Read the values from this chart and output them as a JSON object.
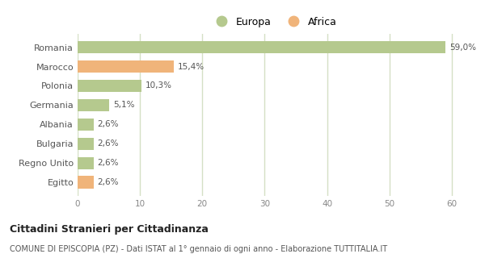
{
  "categories": [
    "Romania",
    "Marocco",
    "Polonia",
    "Germania",
    "Albania",
    "Bulgaria",
    "Regno Unito",
    "Egitto"
  ],
  "values": [
    59.0,
    15.4,
    10.3,
    5.1,
    2.6,
    2.6,
    2.6,
    2.6
  ],
  "labels": [
    "59,0%",
    "15,4%",
    "10,3%",
    "5,1%",
    "2,6%",
    "2,6%",
    "2,6%",
    "2,6%"
  ],
  "colors": [
    "#b5c98e",
    "#f0b47a",
    "#b5c98e",
    "#b5c98e",
    "#b5c98e",
    "#b5c98e",
    "#b5c98e",
    "#f0b47a"
  ],
  "legend_europa_color": "#b5c98e",
  "legend_africa_color": "#f0b47a",
  "xlim": [
    0,
    63
  ],
  "xticks": [
    0,
    10,
    20,
    30,
    40,
    50,
    60
  ],
  "title_bold": "Cittadini Stranieri per Cittadinanza",
  "subtitle": "COMUNE DI EPISCOPIA (PZ) - Dati ISTAT al 1° gennaio di ogni anno - Elaborazione TUTTITALIA.IT",
  "background_color": "#ffffff",
  "grid_color": "#d5e0c5",
  "bar_height": 0.65,
  "label_fontsize": 7.5,
  "ytick_fontsize": 8,
  "xtick_fontsize": 7.5
}
